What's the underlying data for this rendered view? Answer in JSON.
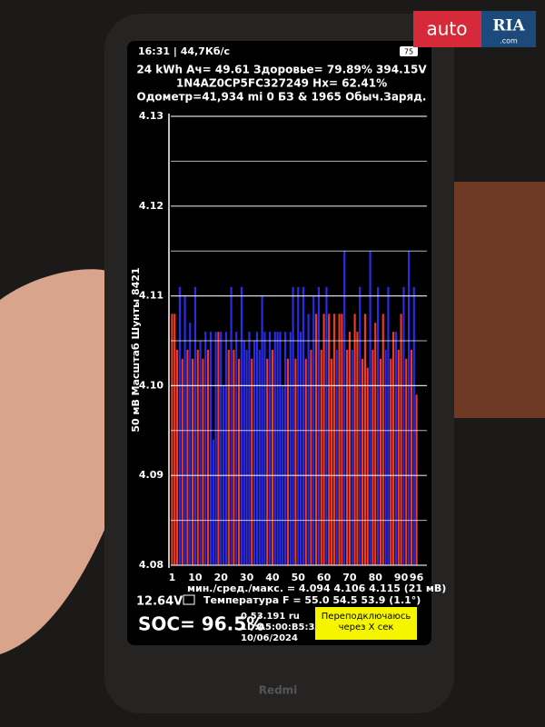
{
  "status_bar": {
    "time": "16:31 | 44,7Кб/с",
    "battery": "75"
  },
  "header": {
    "line1": "24 kWh  Ач= 49.61  Здоровье= 79.89%  394.15V",
    "line2": "1N4AZ0CP5FC327249  Hx= 62.41%",
    "line3": "Одометр=41,934 mi 0 БЗ & 1965 Обыч.Заряд."
  },
  "chart_data": {
    "type": "bar",
    "y_label": "50 мВ Масштаб   Шунты 8421",
    "categories": [
      "1",
      null,
      null,
      null,
      null,
      null,
      null,
      null,
      null,
      "10",
      null,
      null,
      null,
      null,
      null,
      null,
      null,
      null,
      null,
      "20",
      null,
      null,
      null,
      null,
      null,
      null,
      null,
      null,
      null,
      "30",
      null,
      null,
      null,
      null,
      null,
      null,
      null,
      null,
      null,
      "40",
      null,
      null,
      null,
      null,
      null,
      null,
      null,
      null,
      null,
      "50",
      null,
      null,
      null,
      null,
      null,
      null,
      null,
      null,
      null,
      "60",
      null,
      null,
      null,
      null,
      null,
      null,
      null,
      null,
      null,
      "70",
      null,
      null,
      null,
      null,
      null,
      null,
      null,
      null,
      null,
      "80",
      null,
      null,
      null,
      null,
      null,
      null,
      null,
      null,
      null,
      "90",
      null,
      null,
      null,
      null,
      null,
      "96"
    ],
    "values": [
      4.108,
      4.108,
      4.104,
      4.111,
      4.103,
      4.11,
      4.104,
      4.107,
      4.103,
      4.111,
      4.104,
      4.105,
      4.103,
      4.106,
      4.104,
      4.106,
      4.094,
      4.106,
      4.106,
      4.106,
      4.1,
      4.106,
      4.104,
      4.111,
      4.104,
      4.106,
      4.103,
      4.111,
      4.105,
      4.104,
      4.106,
      4.103,
      4.105,
      4.106,
      4.104,
      4.11,
      4.106,
      4.103,
      4.106,
      4.104,
      4.106,
      4.106,
      4.106,
      4.1,
      4.106,
      4.103,
      4.106,
      4.111,
      4.103,
      4.111,
      4.106,
      4.111,
      4.103,
      4.108,
      4.104,
      4.11,
      4.108,
      4.111,
      4.104,
      4.108,
      4.111,
      4.108,
      4.103,
      4.108,
      4.104,
      4.108,
      4.108,
      4.115,
      4.104,
      4.106,
      4.104,
      4.108,
      4.106,
      4.111,
      4.103,
      4.108,
      4.102,
      4.115,
      4.104,
      4.107,
      4.111,
      4.103,
      4.108,
      4.104,
      4.111,
      4.103,
      4.106,
      4.106,
      4.104,
      4.108,
      4.111,
      4.103,
      4.115,
      4.104,
      4.111,
      4.099
    ],
    "bar_colors": [
      "#f03a22",
      "#f03a22",
      "#f03a22",
      "#2b2bea",
      "#f03a22",
      "#2b2bea",
      "#f03a22",
      "#2b2bea",
      "#f03a22",
      "#2b2bea",
      "#f03a22",
      "#2b2bea",
      "#f03a22",
      "#2b2bea",
      "#f03a22",
      "#2b2bea",
      "#2b2bea",
      "#2b2bea",
      "#f03a22",
      "#2b2bea",
      "#2b2bea",
      "#2b2bea",
      "#f03a22",
      "#2b2bea",
      "#f03a22",
      "#2b2bea",
      "#f03a22",
      "#2b2bea",
      "#2b2bea",
      "#2b2bea",
      "#2b2bea",
      "#f03a22",
      "#2b2bea",
      "#2b2bea",
      "#2b2bea",
      "#2b2bea",
      "#2b2bea",
      "#f03a22",
      "#2b2bea",
      "#f03a22",
      "#2b2bea",
      "#2b2bea",
      "#2b2bea",
      "#2b2bea",
      "#2b2bea",
      "#f03a22",
      "#2b2bea",
      "#2b2bea",
      "#f03a22",
      "#2b2bea",
      "#2b2bea",
      "#2b2bea",
      "#f03a22",
      "#2b2bea",
      "#f03a22",
      "#2b2bea",
      "#f03a22",
      "#2b2bea",
      "#f03a22",
      "#f03a22",
      "#2b2bea",
      "#f03a22",
      "#f03a22",
      "#f03a22",
      "#2b2bea",
      "#f03a22",
      "#f03a22",
      "#2b2bea",
      "#f03a22",
      "#f03a22",
      "#2b2bea",
      "#f03a22",
      "#f03a22",
      "#2b2bea",
      "#f03a22",
      "#f03a22",
      "#f03a22",
      "#2b2bea",
      "#f03a22",
      "#f03a22",
      "#2b2bea",
      "#f03a22",
      "#f03a22",
      "#2b2bea",
      "#2b2bea",
      "#f03a22",
      "#f03a22",
      "#2b2bea",
      "#f03a22",
      "#f03a22",
      "#2b2bea",
      "#f03a22",
      "#2b2bea",
      "#f03a22",
      "#2b2bea",
      "#f03a22"
    ],
    "ylim": [
      4.08,
      4.13
    ],
    "yticks": [
      4.08,
      4.09,
      {
        "value": 4.1,
        "label": "4.10"
      },
      4.11,
      4.12,
      4.13
    ],
    "grid": true,
    "minor_grid": true
  },
  "footer": {
    "stats": "мин./сред./макс. = 4.094 4.106 4.115 (21 мВ)",
    "voltage": "12.64V",
    "temperature": "Температура F = 55.0  54.5  53.9 (1.1°)",
    "soc": "SOC= 96.5%",
    "version": "0.53.191 ru",
    "mac": "1D:A5:00:B5:3A",
    "date": "10/06/2024",
    "button": "Переподключаюсь через X сек",
    "brand": "Redmi"
  },
  "watermark": {
    "left": "auto",
    "right": "RIA",
    "domain": ".com"
  }
}
